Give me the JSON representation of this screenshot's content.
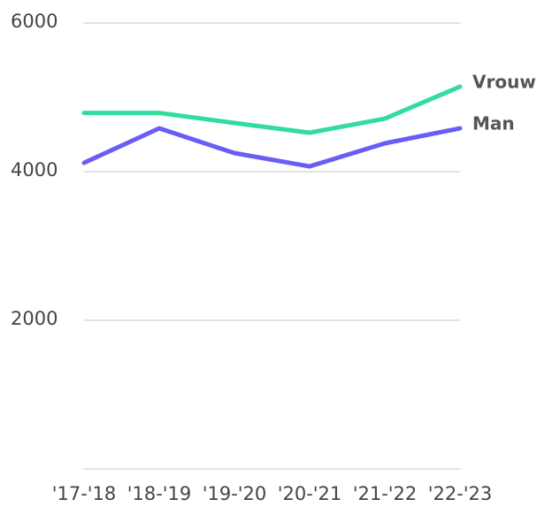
{
  "chart_data": {
    "type": "line",
    "categories": [
      "'17-'18",
      "'18-'19",
      "'19-'20",
      "'20-'21",
      "'21-'22",
      "'22-'23"
    ],
    "series": [
      {
        "name": "Vrouw",
        "color": "#33dc9e",
        "values": [
          4790,
          4790,
          4655,
          4524,
          4714,
          5143
        ]
      },
      {
        "name": "Man",
        "color": "#6b5cf6",
        "values": [
          4119,
          4583,
          4250,
          4071,
          4381,
          4583
        ]
      }
    ],
    "ylim": [
      0,
      6000
    ],
    "yticks": [
      2000,
      4000,
      6000
    ],
    "grid": true
  }
}
